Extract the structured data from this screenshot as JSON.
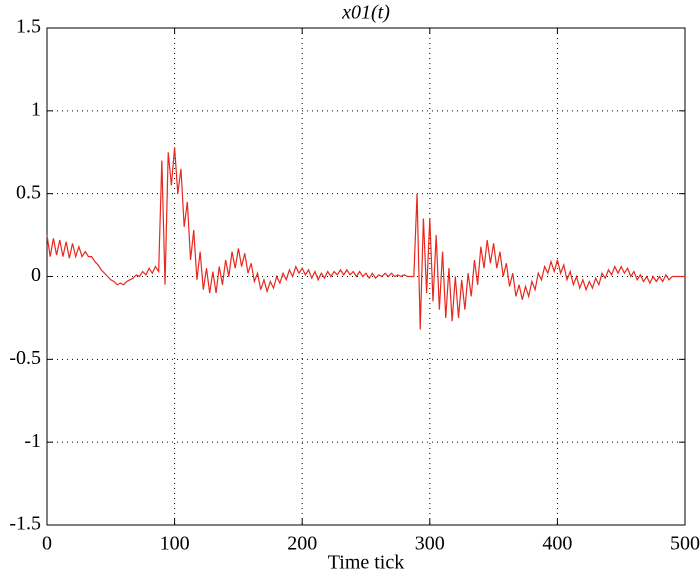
{
  "chart_data": {
    "type": "line",
    "title": "x01(t)",
    "x_label": "Time tick",
    "x": [
      0,
      2.5,
      5,
      7.5,
      10,
      12.5,
      15,
      17.5,
      20,
      22.5,
      25,
      27.5,
      30,
      32.5,
      35,
      37.5,
      40,
      42.5,
      45,
      47.5,
      50,
      52.5,
      55,
      57.5,
      60,
      62.5,
      65,
      67.5,
      70,
      72.5,
      75,
      77.5,
      80,
      82.5,
      85,
      87.5,
      90,
      92.5,
      95,
      97.5,
      100,
      102.5,
      105,
      107.5,
      110,
      112.5,
      115,
      117.5,
      120,
      122.5,
      125,
      127.5,
      130,
      132.5,
      135,
      137.5,
      140,
      142.5,
      145,
      147.5,
      150,
      152.5,
      155,
      157.5,
      160,
      162.5,
      165,
      167.5,
      170,
      172.5,
      175,
      177.5,
      180,
      182.5,
      185,
      187.5,
      190,
      192.5,
      195,
      197.5,
      200,
      202.5,
      205,
      207.5,
      210,
      212.5,
      215,
      217.5,
      220,
      222.5,
      225,
      227.5,
      230,
      232.5,
      235,
      237.5,
      240,
      242.5,
      245,
      247.5,
      250,
      252.5,
      255,
      257.5,
      260,
      262.5,
      265,
      267.5,
      270,
      272.5,
      275,
      277.5,
      280,
      282.5,
      285,
      287.5,
      290,
      292.5,
      295,
      297.5,
      300,
      302.5,
      305,
      307.5,
      310,
      312.5,
      315,
      317.5,
      320,
      322.5,
      325,
      327.5,
      330,
      332.5,
      335,
      337.5,
      340,
      342.5,
      345,
      347.5,
      350,
      352.5,
      355,
      357.5,
      360,
      362.5,
      365,
      367.5,
      370,
      372.5,
      375,
      377.5,
      380,
      382.5,
      385,
      387.5,
      390,
      392.5,
      395,
      397.5,
      400,
      402.5,
      405,
      407.5,
      410,
      412.5,
      415,
      417.5,
      420,
      422.5,
      425,
      427.5,
      430,
      432.5,
      435,
      437.5,
      440,
      442.5,
      445,
      447.5,
      450,
      452.5,
      455,
      457.5,
      460,
      462.5,
      465,
      467.5,
      470,
      472.5,
      475,
      477.5,
      480,
      482.5,
      485,
      487.5,
      490,
      492.5,
      495,
      497.5,
      500
    ],
    "series": [
      {
        "name": "x01",
        "color": "#e8281e",
        "values": [
          0.25,
          0.12,
          0.23,
          0.13,
          0.22,
          0.12,
          0.21,
          0.11,
          0.2,
          0.12,
          0.18,
          0.12,
          0.15,
          0.12,
          0.12,
          0.09,
          0.07,
          0.04,
          0.02,
          0.0,
          -0.02,
          -0.03,
          -0.05,
          -0.04,
          -0.05,
          -0.03,
          -0.02,
          -0.01,
          0.01,
          0.0,
          0.03,
          0.01,
          0.05,
          0.02,
          0.06,
          0.03,
          0.7,
          -0.05,
          0.75,
          0.55,
          0.78,
          0.5,
          0.65,
          0.3,
          0.45,
          0.1,
          0.28,
          -0.02,
          0.15,
          -0.08,
          0.05,
          -0.1,
          0.03,
          -0.1,
          0.06,
          -0.05,
          0.1,
          0.0,
          0.15,
          0.05,
          0.17,
          0.06,
          0.14,
          0.02,
          0.08,
          -0.03,
          0.02,
          -0.08,
          -0.02,
          -0.09,
          -0.03,
          -0.07,
          0.0,
          -0.04,
          0.02,
          -0.02,
          0.04,
          0.0,
          0.06,
          0.02,
          0.05,
          0.01,
          0.04,
          -0.01,
          0.03,
          -0.02,
          0.02,
          -0.01,
          0.03,
          0.0,
          0.03,
          0.01,
          0.04,
          0.01,
          0.04,
          0.01,
          0.03,
          0.0,
          0.03,
          0.0,
          0.02,
          -0.01,
          0.02,
          -0.01,
          0.01,
          0.0,
          0.02,
          0.0,
          0.02,
          0.0,
          0.01,
          0.0,
          0.01,
          0.0,
          0.0,
          0.0,
          0.5,
          -0.32,
          0.35,
          -0.1,
          0.35,
          -0.15,
          0.25,
          -0.2,
          0.15,
          -0.25,
          0.05,
          -0.27,
          0.0,
          -0.25,
          -0.02,
          -0.2,
          0.02,
          -0.12,
          0.1,
          -0.05,
          0.18,
          0.05,
          0.22,
          0.08,
          0.2,
          0.05,
          0.15,
          0.0,
          0.08,
          -0.06,
          0.02,
          -0.12,
          -0.05,
          -0.14,
          -0.06,
          -0.12,
          -0.03,
          -0.08,
          0.02,
          -0.02,
          0.06,
          0.02,
          0.09,
          0.03,
          0.1,
          0.02,
          0.07,
          -0.02,
          0.03,
          -0.05,
          0.0,
          -0.07,
          -0.02,
          -0.08,
          -0.03,
          -0.07,
          -0.01,
          -0.05,
          0.02,
          -0.01,
          0.04,
          0.01,
          0.06,
          0.02,
          0.06,
          0.02,
          0.05,
          0.0,
          0.03,
          -0.02,
          0.01,
          -0.03,
          0.0,
          -0.04,
          0.0,
          -0.03,
          0.0,
          -0.03,
          0.01,
          -0.02,
          0.0,
          0.0,
          0.0,
          0.0,
          0.0
        ]
      }
    ],
    "xlim": [
      0,
      500
    ],
    "xticks": [
      0,
      100,
      200,
      300,
      400,
      500
    ],
    "ylim": [
      -1.5,
      1.5
    ],
    "yticks": [
      -1.5,
      -1,
      -0.5,
      0,
      0.5,
      1,
      1.5
    ],
    "grid": true
  }
}
